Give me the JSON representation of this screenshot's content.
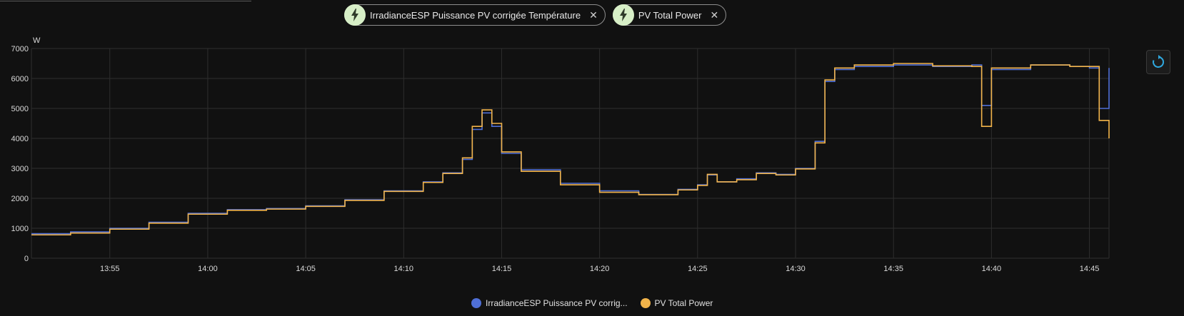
{
  "chips": [
    {
      "label": "IrradianceESP Puissance PV corrigée Température",
      "icon": "lightning-icon",
      "close_icon": "close-icon"
    },
    {
      "label": "PV Total Power",
      "icon": "lightning-icon",
      "close_icon": "close-icon"
    }
  ],
  "reset_icon": "reset-zoom-icon",
  "colors": {
    "series1": "#4f6fd6",
    "series2": "#f2b44a",
    "grid": "#2e2e2e",
    "axis_text": "#d9d9d9",
    "chip_icon_bg": "#d7efc7"
  },
  "legend": [
    {
      "label": "IrradianceESP Puissance PV corrig...",
      "color": "#4f6fd6"
    },
    {
      "label": "PV Total Power",
      "color": "#f2b44a"
    }
  ],
  "chart_data": {
    "type": "line",
    "ylabel": "W",
    "ylim": [
      0,
      7000
    ],
    "yticks": [
      "0",
      "1000",
      "2000",
      "3000",
      "4000",
      "5000",
      "6000",
      "7000"
    ],
    "xlim": [
      "13:51",
      "14:46"
    ],
    "xticks": [
      "13:55",
      "14:00",
      "14:05",
      "14:10",
      "14:15",
      "14:20",
      "14:25",
      "14:30",
      "14:35",
      "14:40",
      "14:45"
    ],
    "grid": true,
    "legend_position": "bottom",
    "series": [
      {
        "name": "IrradianceESP Puissance PV corrigée Température",
        "x": [
          "13:51",
          "13:53",
          "13:55",
          "13:57",
          "13:59",
          "14:01",
          "14:03",
          "14:05",
          "14:07",
          "14:09",
          "14:11",
          "14:12",
          "14:13",
          "14:13:30",
          "14:14",
          "14:14:30",
          "14:15",
          "14:16",
          "14:18",
          "14:20",
          "14:22",
          "14:24",
          "14:25",
          "14:25:30",
          "14:26",
          "14:27",
          "14:28",
          "14:29",
          "14:30",
          "14:31",
          "14:31:30",
          "14:32",
          "14:33",
          "14:35",
          "14:37",
          "14:39",
          "14:39:30",
          "14:40",
          "14:42",
          "14:44",
          "14:45",
          "14:45:30",
          "14:46"
        ],
        "y": [
          820,
          880,
          1000,
          1200,
          1500,
          1620,
          1660,
          1750,
          1950,
          2250,
          2550,
          2850,
          3300,
          4300,
          4850,
          4400,
          3500,
          2950,
          2500,
          2250,
          2130,
          2300,
          2450,
          2780,
          2550,
          2650,
          2850,
          2800,
          3000,
          3900,
          5900,
          6300,
          6400,
          6450,
          6400,
          6450,
          5100,
          6300,
          6450,
          6400,
          6350,
          5000,
          6350
        ]
      },
      {
        "name": "PV Total Power",
        "x": [
          "13:51",
          "13:53",
          "13:55",
          "13:57",
          "13:59",
          "14:01",
          "14:03",
          "14:05",
          "14:07",
          "14:09",
          "14:11",
          "14:12",
          "14:13",
          "14:13:30",
          "14:14",
          "14:14:30",
          "14:15",
          "14:16",
          "14:18",
          "14:20",
          "14:22",
          "14:24",
          "14:25",
          "14:25:30",
          "14:26",
          "14:27",
          "14:28",
          "14:29",
          "14:30",
          "14:31",
          "14:31:30",
          "14:32",
          "14:33",
          "14:35",
          "14:37",
          "14:39",
          "14:39:30",
          "14:40",
          "14:42",
          "14:44",
          "14:45",
          "14:45:30",
          "14:46"
        ],
        "y": [
          780,
          840,
          970,
          1170,
          1470,
          1600,
          1640,
          1730,
          1930,
          2230,
          2530,
          2830,
          3350,
          4400,
          4950,
          4500,
          3550,
          2900,
          2450,
          2200,
          2120,
          2280,
          2430,
          2800,
          2550,
          2620,
          2830,
          2780,
          2980,
          3850,
          5950,
          6350,
          6450,
          6500,
          6420,
          6400,
          4400,
          6350,
          6450,
          6400,
          6400,
          4600,
          4000
        ]
      }
    ]
  }
}
